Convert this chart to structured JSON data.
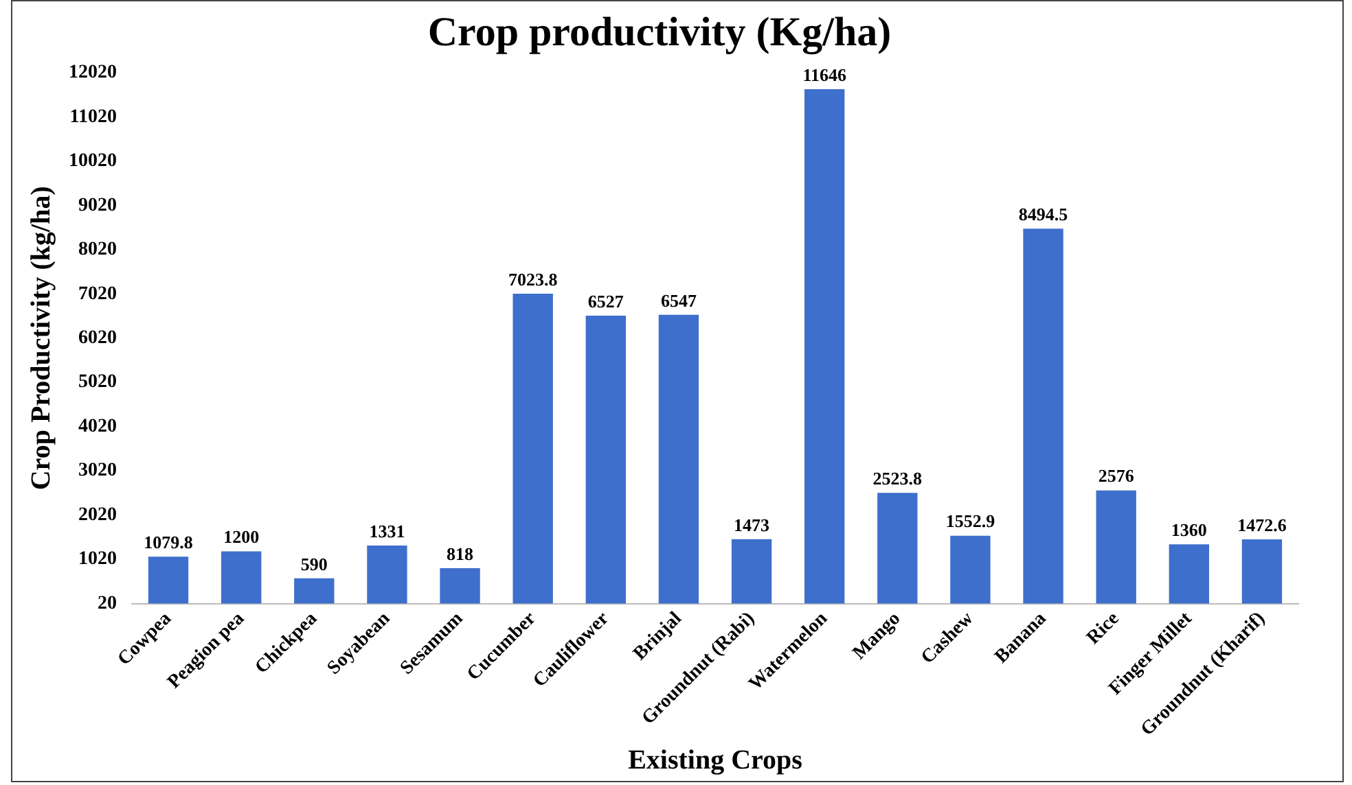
{
  "chart_data": {
    "type": "bar",
    "title": "Crop productivity (Kg/ha)",
    "xlabel": "Existing Crops",
    "ylabel": "Crop Productivity (kg/ha)",
    "categories": [
      "Cowpea",
      "Peagion pea",
      "Chickpea",
      "Soyabean",
      "Sesamum",
      "Cucumber",
      "Cauliflower",
      "Brinjal",
      "Groundnut (Rabi)",
      "Watermelon",
      "Mango",
      "Cashew",
      "Banana",
      "Rice",
      "Finger Millet",
      "Groundnut (Kharif)"
    ],
    "values": [
      1079.8,
      1200,
      590,
      1331,
      818,
      7023.8,
      6527,
      6547,
      1473,
      11646,
      2523.8,
      1552.9,
      8494.5,
      2576,
      1360,
      1472.6
    ],
    "color": "#3f6fcc",
    "ylim": [
      20,
      12020
    ],
    "yticks": [
      20,
      1020,
      2020,
      3020,
      4020,
      5020,
      6020,
      7020,
      8020,
      9020,
      10020,
      11020,
      12020
    ],
    "grid": false,
    "data_labels": true
  }
}
